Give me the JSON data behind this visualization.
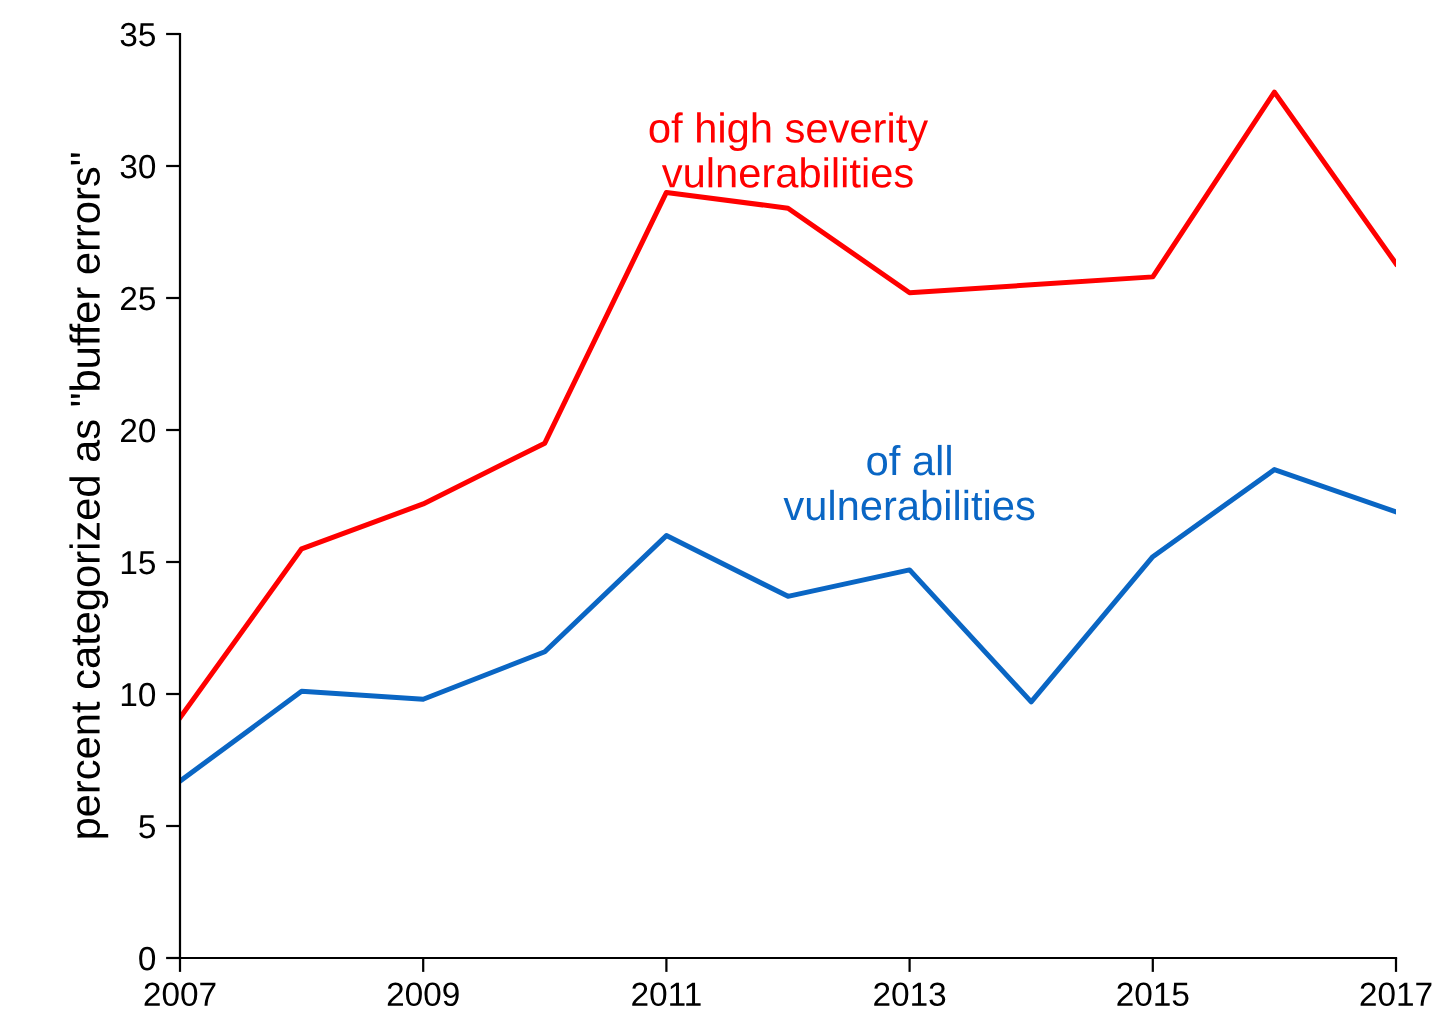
{
  "chart_data": {
    "type": "line",
    "ylabel": "percent categorized as \"buffer errors\"",
    "x": [
      2007,
      2008,
      2009,
      2010,
      2011,
      2012,
      2013,
      2014,
      2015,
      2016,
      2017
    ],
    "series": [
      {
        "name": "of high severity\nvulnerabilities",
        "color": "#ff0000",
        "values": [
          9.1,
          15.5,
          17.2,
          19.5,
          29.0,
          28.4,
          25.2,
          25.5,
          25.8,
          32.8,
          26.3
        ]
      },
      {
        "name": "of all\nvulnerabilities",
        "color": "#0a66c4",
        "values": [
          6.7,
          10.1,
          9.8,
          11.6,
          16.0,
          13.7,
          14.7,
          9.7,
          15.2,
          18.5,
          16.9
        ]
      }
    ],
    "xlim": [
      2007,
      2017
    ],
    "xticks": [
      2007,
      2009,
      2011,
      2013,
      2015,
      2017
    ],
    "ylim": [
      0,
      35
    ],
    "yticks": [
      0,
      5,
      10,
      15,
      20,
      25,
      30,
      35
    ],
    "grid": false,
    "legend": false,
    "marker": "none",
    "line_style": "solid"
  }
}
